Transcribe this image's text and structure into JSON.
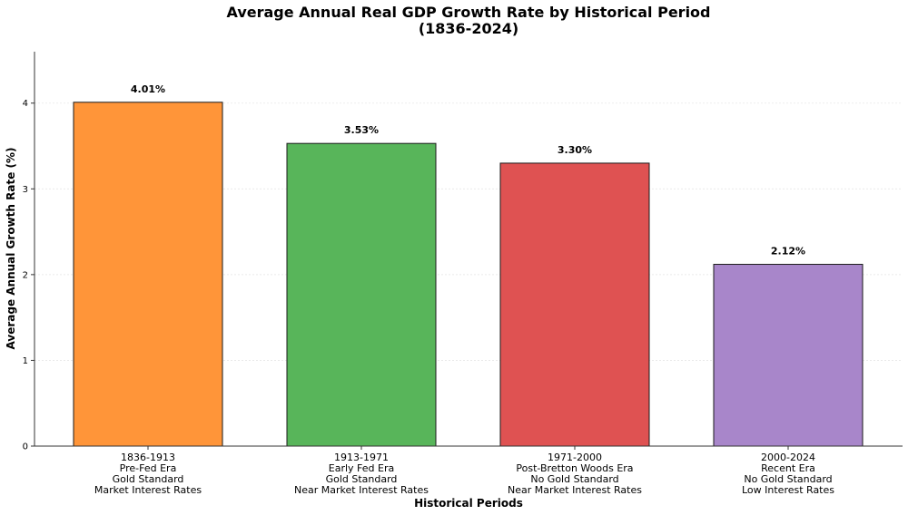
{
  "chart_data": {
    "type": "bar",
    "title": [
      "Average Annual Real GDP Growth Rate by Historical Period",
      "(1836-2024)"
    ],
    "xlabel": "Historical Periods",
    "ylabel": "Average Annual Growth Rate (%)",
    "ylim": [
      0,
      4.6
    ],
    "yticks": [
      0,
      1,
      2,
      3,
      4
    ],
    "grid": "horizontal, faint",
    "legend": "none",
    "categories": [
      [
        "1836-1913",
        "Pre-Fed Era",
        "Gold Standard",
        "Market Interest Rates"
      ],
      [
        "1913-1971",
        "Early Fed Era",
        "Gold Standard",
        "Near Market Interest Rates"
      ],
      [
        "1971-2000",
        "Post-Bretton Woods Era",
        "No Gold Standard",
        "Near Market Interest Rates"
      ],
      [
        "2000-2024",
        "Recent Era",
        "No Gold Standard",
        "Low Interest Rates"
      ]
    ],
    "values": [
      4.01,
      3.53,
      3.3,
      2.12
    ],
    "value_labels": [
      "4.01%",
      "3.53%",
      "3.30%",
      "2.12%"
    ],
    "colors": [
      "#ff9539",
      "#58b55a",
      "#df5252",
      "#a886ca"
    ]
  }
}
